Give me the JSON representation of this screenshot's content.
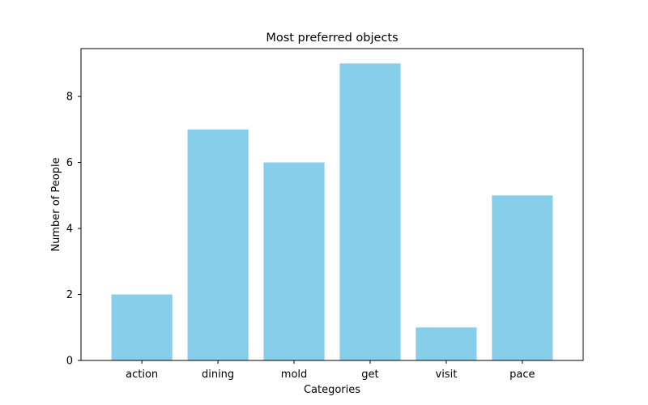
{
  "chart_data": {
    "type": "bar",
    "title": "Most preferred objects",
    "xlabel": "Categories",
    "ylabel": "Number of People",
    "categories": [
      "action",
      "dining",
      "mold",
      "get",
      "visit",
      "pace"
    ],
    "values": [
      2,
      7,
      6,
      9,
      1,
      5
    ],
    "ylim": [
      0,
      9.45
    ],
    "yticks": [
      0,
      2,
      4,
      6,
      8
    ],
    "grid": false,
    "bar_color": "#87CEEB"
  }
}
